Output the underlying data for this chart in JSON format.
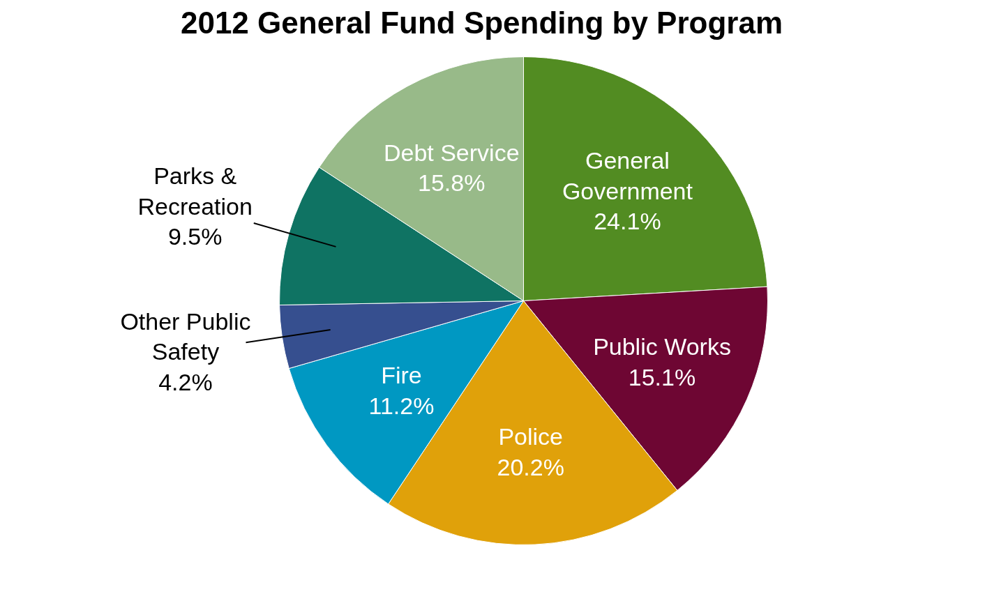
{
  "chart_data": {
    "type": "pie",
    "title": "2012 General Fund Spending by Program",
    "categories": [
      "General\nGovernment",
      "Public Works",
      "Police",
      "Fire",
      "Other Public\nSafety",
      "Parks &\nRecreation",
      "Debt Service"
    ],
    "values": [
      24.1,
      15.1,
      20.2,
      11.2,
      4.2,
      9.5,
      15.8
    ],
    "value_labels": [
      "24.1%",
      "15.1%",
      "20.2%",
      "11.2%",
      "4.2%",
      "9.5%",
      "15.8%"
    ],
    "colors": [
      "#528c22",
      "#6e0633",
      "#e0a10a",
      "#0098c2",
      "#364f8f",
      "#0f7363",
      "#98ba89"
    ]
  }
}
